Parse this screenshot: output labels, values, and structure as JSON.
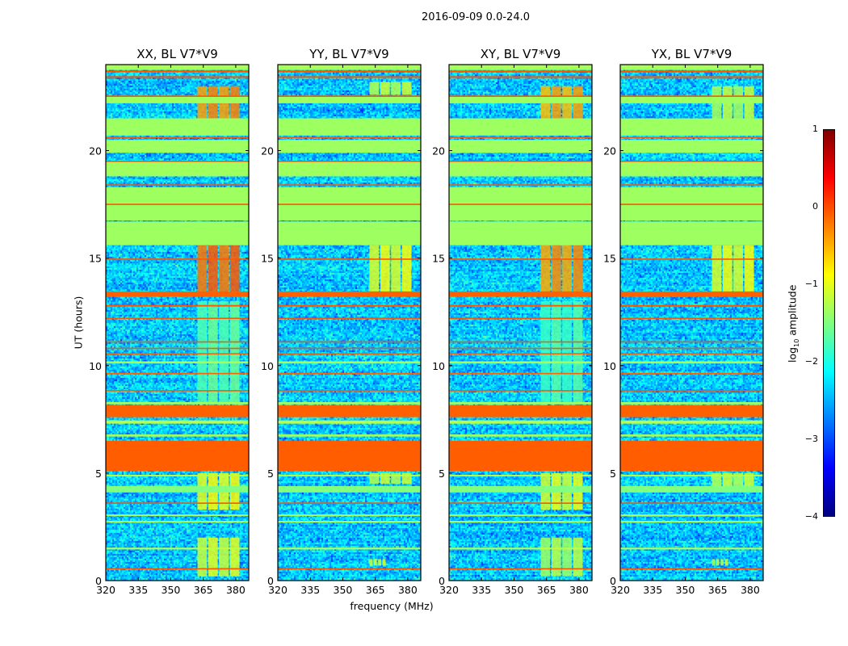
{
  "chart_data": {
    "type": "heatmap",
    "title": "2016-09-09 0.0-24.0",
    "xlabel": "frequency (MHz)",
    "ylabel": "UT (hours)",
    "xlim": [
      320,
      386
    ],
    "ylim": [
      0,
      24
    ],
    "xticks": [
      320,
      335,
      350,
      365,
      380
    ],
    "yticks": [
      0,
      5,
      10,
      15,
      20
    ],
    "colorbar": {
      "label": "log10 amplitude",
      "label_main": "log",
      "label_sub": "10",
      "label_rest": " amplitude",
      "range": [
        -4,
        1
      ],
      "ticks": [
        1,
        0,
        -1,
        -2,
        -3,
        -4
      ],
      "tick_labels": [
        "1",
        "0",
        "−1",
        "−2",
        "−3",
        "−4"
      ],
      "colormap": "jet"
    },
    "background_level": -2.4,
    "bands": [
      {
        "t0": 15.6,
        "t1": 16.7,
        "level": -1.35
      },
      {
        "t0": 16.75,
        "t1": 18.3,
        "level": -1.35
      },
      {
        "t0": 18.8,
        "t1": 19.5,
        "level": -1.35
      },
      {
        "t0": 19.9,
        "t1": 20.5,
        "level": -1.35
      },
      {
        "t0": 20.7,
        "t1": 21.5,
        "level": -1.35
      },
      {
        "t0": 22.2,
        "t1": 22.5,
        "level": -1.35
      },
      {
        "t0": 23.75,
        "t1": 24.0,
        "level": -1.3
      },
      {
        "t0": 23.65,
        "t1": 23.72,
        "level": -0.05
      },
      {
        "t0": 23.38,
        "t1": 23.46,
        "level": -0.05
      },
      {
        "t0": 22.5,
        "t1": 22.56,
        "level": -0.05
      },
      {
        "t0": 20.58,
        "t1": 20.64,
        "level": -0.05
      },
      {
        "t0": 19.47,
        "t1": 19.53,
        "level": -0.05
      },
      {
        "t0": 18.37,
        "t1": 18.43,
        "level": -0.05
      },
      {
        "t0": 17.47,
        "t1": 17.53,
        "level": -0.05
      },
      {
        "t0": 14.92,
        "t1": 14.98,
        "level": -0.05
      },
      {
        "t0": 13.2,
        "t1": 13.45,
        "level": -0.1
      },
      {
        "t0": 12.75,
        "t1": 12.82,
        "level": -0.05
      },
      {
        "t0": 12.17,
        "t1": 12.23,
        "level": -0.05
      },
      {
        "t0": 11.07,
        "t1": 11.13,
        "level": -0.05
      },
      {
        "t0": 10.77,
        "t1": 10.83,
        "level": -0.05
      },
      {
        "t0": 10.52,
        "t1": 10.58,
        "level": -0.1
      },
      {
        "t0": 10.1,
        "t1": 10.2,
        "level": -1.3
      },
      {
        "t0": 9.6,
        "t1": 9.66,
        "level": -0.1
      },
      {
        "t0": 8.8,
        "t1": 8.86,
        "level": -0.05
      },
      {
        "t0": 8.2,
        "t1": 8.3,
        "level": -1.3
      },
      {
        "t0": 7.6,
        "t1": 8.15,
        "level": -0.1
      },
      {
        "t0": 7.3,
        "t1": 7.45,
        "level": -1.2
      },
      {
        "t0": 6.7,
        "t1": 6.8,
        "level": -1.3
      },
      {
        "t0": 5.1,
        "t1": 6.5,
        "level": -0.08
      },
      {
        "t0": 4.85,
        "t1": 4.92,
        "level": -1.2
      },
      {
        "t0": 4.1,
        "t1": 4.4,
        "level": -1.5
      },
      {
        "t0": 3.57,
        "t1": 3.63,
        "level": -0.05
      },
      {
        "t0": 3.0,
        "t1": 3.08,
        "level": -1.3
      },
      {
        "t0": 2.7,
        "t1": 2.78,
        "level": -1.3
      },
      {
        "t0": 1.45,
        "t1": 1.53,
        "level": -1.2
      },
      {
        "t0": 0.52,
        "t1": 0.58,
        "level": -0.05
      }
    ],
    "panels": [
      {
        "title": "XX, BL V7*V9",
        "rfi": [
          {
            "f0": 362,
            "f1": 382,
            "t0": 13.4,
            "t1": 15.6,
            "level": -0.15
          },
          {
            "f0": 362,
            "f1": 382,
            "t0": 21.5,
            "t1": 23.0,
            "level": -0.35
          },
          {
            "f0": 362,
            "f1": 382,
            "t0": 3.3,
            "t1": 5.0,
            "level": -0.95
          },
          {
            "f0": 362,
            "f1": 382,
            "t0": 0.2,
            "t1": 2.0,
            "level": -1.1
          },
          {
            "f0": 362,
            "f1": 382,
            "t0": 8.3,
            "t1": 13.0,
            "level": -1.7
          }
        ]
      },
      {
        "title": "YY, BL V7*V9",
        "rfi": [
          {
            "f0": 362,
            "f1": 382,
            "t0": 13.4,
            "t1": 15.6,
            "level": -1.0
          },
          {
            "f0": 362,
            "f1": 382,
            "t0": 22.6,
            "t1": 23.2,
            "level": -1.2
          },
          {
            "f0": 362,
            "f1": 382,
            "t0": 4.5,
            "t1": 5.0,
            "level": -1.2
          },
          {
            "f0": 362,
            "f1": 370,
            "t0": 0.7,
            "t1": 1.0,
            "level": -1.1
          }
        ]
      },
      {
        "title": "XY, BL V7*V9",
        "rfi": [
          {
            "f0": 362,
            "f1": 382,
            "t0": 13.4,
            "t1": 15.6,
            "level": -0.4
          },
          {
            "f0": 362,
            "f1": 382,
            "t0": 21.5,
            "t1": 23.0,
            "level": -0.5
          },
          {
            "f0": 362,
            "f1": 382,
            "t0": 3.3,
            "t1": 5.0,
            "level": -1.05
          },
          {
            "f0": 362,
            "f1": 382,
            "t0": 0.2,
            "t1": 2.0,
            "level": -1.3
          },
          {
            "f0": 362,
            "f1": 382,
            "t0": 8.3,
            "t1": 13.0,
            "level": -1.8
          }
        ]
      },
      {
        "title": "YX, BL V7*V9",
        "rfi": [
          {
            "f0": 362,
            "f1": 382,
            "t0": 13.4,
            "t1": 15.6,
            "level": -1.0
          },
          {
            "f0": 362,
            "f1": 382,
            "t0": 21.5,
            "t1": 23.0,
            "level": -1.25
          },
          {
            "f0": 362,
            "f1": 382,
            "t0": 4.3,
            "t1": 5.0,
            "level": -1.2
          },
          {
            "f0": 362,
            "f1": 370,
            "t0": 0.7,
            "t1": 1.0,
            "level": -1.2
          }
        ]
      }
    ]
  }
}
